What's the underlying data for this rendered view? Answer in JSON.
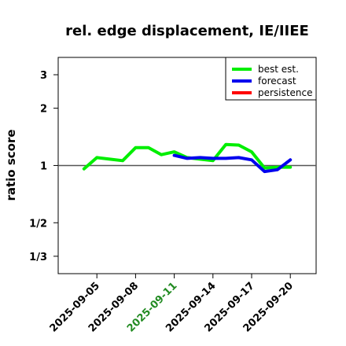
{
  "chart_data": {
    "type": "line",
    "title": "rel. edge displacement, IE/IIEE",
    "xlabel": "",
    "ylabel": "ratio score",
    "y_scale": "log",
    "ylim": [
      0.27,
      3.7
    ],
    "xlim": [
      "2025-09-02",
      "2025-09-22"
    ],
    "yticks": [
      {
        "value": 0.3333,
        "label": "1/3"
      },
      {
        "value": 0.5,
        "label": "1/2"
      },
      {
        "value": 1,
        "label": "1"
      },
      {
        "value": 2,
        "label": "2"
      },
      {
        "value": 3,
        "label": "3"
      }
    ],
    "xticks": [
      {
        "value": "2025-09-05",
        "label": "2025-09-05",
        "color": "#000000"
      },
      {
        "value": "2025-09-08",
        "label": "2025-09-08",
        "color": "#000000"
      },
      {
        "value": "2025-09-11",
        "label": "2025-09-11",
        "color": "#228B22"
      },
      {
        "value": "2025-09-14",
        "label": "2025-09-14",
        "color": "#000000"
      },
      {
        "value": "2025-09-17",
        "label": "2025-09-17",
        "color": "#000000"
      },
      {
        "value": "2025-09-20",
        "label": "2025-09-20",
        "color": "#000000"
      }
    ],
    "reference_line": {
      "y": 1,
      "color": "#555555"
    },
    "grid": false,
    "legend_position": "top-right",
    "series": [
      {
        "name": "best est.",
        "color": "#00ee00",
        "x": [
          "2025-09-04",
          "2025-09-05",
          "2025-09-06",
          "2025-09-07",
          "2025-09-08",
          "2025-09-09",
          "2025-09-10",
          "2025-09-11",
          "2025-09-12",
          "2025-09-13",
          "2025-09-14",
          "2025-09-15",
          "2025-09-16",
          "2025-09-17",
          "2025-09-18",
          "2025-09-19",
          "2025-09-20"
        ],
        "y": [
          0.96,
          1.1,
          1.08,
          1.06,
          1.24,
          1.24,
          1.14,
          1.18,
          1.1,
          1.08,
          1.06,
          1.29,
          1.28,
          1.18,
          0.97,
          0.98,
          0.98
        ]
      },
      {
        "name": "forecast",
        "color": "#0000ee",
        "x": [
          "2025-09-11",
          "2025-09-12",
          "2025-09-13",
          "2025-09-14",
          "2025-09-15",
          "2025-09-16",
          "2025-09-17",
          "2025-09-18",
          "2025-09-19",
          "2025-09-20"
        ],
        "y": [
          1.13,
          1.09,
          1.1,
          1.09,
          1.09,
          1.1,
          1.07,
          0.93,
          0.95,
          1.07
        ]
      },
      {
        "name": "persistence",
        "color": "#ff0000",
        "x": [],
        "y": []
      }
    ]
  }
}
